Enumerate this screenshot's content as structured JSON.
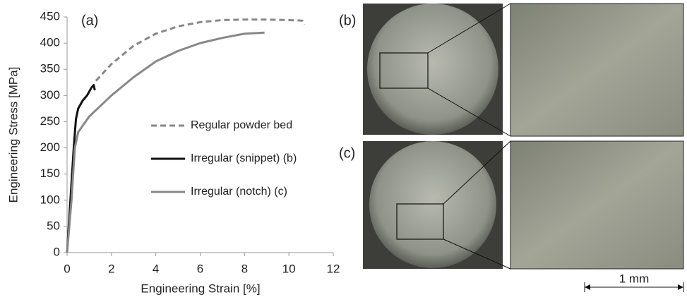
{
  "chart_data": {
    "type": "line",
    "xlabel": "Engineering Strain [%]",
    "ylabel": "Engineering Stress [MPa]",
    "annotations": [
      "(a)",
      "(b)",
      "(c)"
    ],
    "scale_bar": "1 mm",
    "xlim": [
      0,
      12
    ],
    "xticks": [
      0,
      2,
      4,
      6,
      8,
      10,
      12
    ],
    "ylim": [
      0,
      450
    ],
    "yticks": [
      0,
      50,
      100,
      150,
      200,
      250,
      300,
      350,
      400,
      450
    ],
    "grid": false,
    "legend": "center",
    "series": [
      {
        "name": "Regular powder bed",
        "color": "#888888",
        "dashed": true,
        "x": [
          1.3,
          2,
          3,
          4,
          5,
          6,
          7,
          8,
          9,
          10,
          10.6,
          10.7
        ],
        "values": [
          328,
          360,
          395,
          418,
          432,
          440,
          444,
          445,
          445,
          444,
          443,
          435
        ]
      },
      {
        "name": "Irregular (snippet) (b)",
        "color": "#111111",
        "dashed": false,
        "x": [
          0,
          0.15,
          0.3,
          0.4,
          0.5,
          0.7,
          0.9,
          1.1,
          1.2,
          1.25
        ],
        "values": [
          0,
          100,
          200,
          255,
          275,
          290,
          300,
          315,
          320,
          310
        ]
      },
      {
        "name": "Irregular (notch) (c)",
        "color": "#888888",
        "dashed": false,
        "x": [
          0,
          0.2,
          0.35,
          0.5,
          1,
          1.5,
          2,
          3,
          4,
          5,
          6,
          7,
          8,
          8.9
        ],
        "values": [
          0,
          100,
          200,
          230,
          260,
          280,
          300,
          335,
          365,
          385,
          400,
          410,
          418,
          420
        ]
      }
    ]
  }
}
